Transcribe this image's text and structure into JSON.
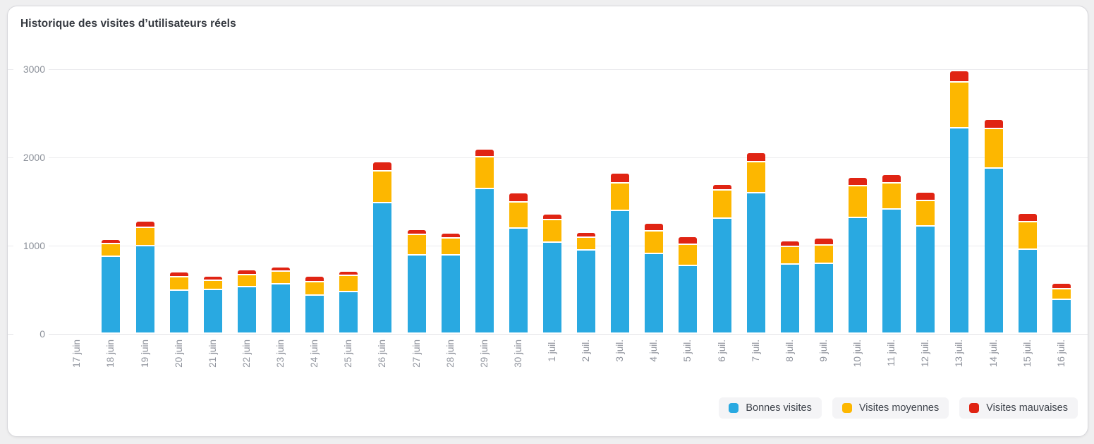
{
  "page": {
    "background": "#efeff0"
  },
  "card": {
    "title": "Historique des visites d’utilisateurs réels"
  },
  "chart_data": {
    "type": "bar",
    "stacked": true,
    "title": "Historique des visites d’utilisateurs réels",
    "xlabel": "",
    "ylabel": "",
    "ylim": [
      0,
      3000
    ],
    "y_ticks": [
      0,
      1000,
      2000,
      3000
    ],
    "grid": true,
    "legend_position": "bottom-right",
    "x_label_rotation": -90,
    "categories": [
      "17 juin",
      "18 juin",
      "19 juin",
      "20 juin",
      "21 juin",
      "22 juin",
      "23 juin",
      "24 juin",
      "25 juin",
      "26 juin",
      "27 juin",
      "28 juin",
      "29 juin",
      "30 juin",
      "1 juil.",
      "2 juil.",
      "3 juil.",
      "4 juil.",
      "5 juil.",
      "6 juil.",
      "7 juil.",
      "8 juil.",
      "9 juil.",
      "10 juil.",
      "11 juil.",
      "12 juil.",
      "13 juil.",
      "14 juil.",
      "15 juil.",
      "16 juil."
    ],
    "series": [
      {
        "name": "Bonnes visites",
        "color": "#29A9E1",
        "values": [
          0,
          860,
          980,
          470,
          480,
          515,
          545,
          415,
          460,
          1465,
          870,
          870,
          1625,
          1180,
          1020,
          925,
          1375,
          890,
          750,
          1285,
          1580,
          770,
          780,
          1300,
          1395,
          1200,
          2310,
          1855,
          935,
          365
        ]
      },
      {
        "name": "Visites moyennes",
        "color": "#FDB700",
        "values": [
          0,
          125,
          190,
          135,
          85,
          115,
          125,
          140,
          165,
          345,
          215,
          180,
          340,
          280,
          235,
          130,
          300,
          240,
          230,
          310,
          330,
          185,
          190,
          340,
          280,
          270,
          505,
          430,
          300,
          105
        ]
      },
      {
        "name": "Visites mauvaises",
        "color": "#E02413",
        "values": [
          0,
          35,
          55,
          40,
          35,
          40,
          35,
          45,
          35,
          85,
          45,
          35,
          75,
          85,
          50,
          45,
          90,
          70,
          65,
          45,
          90,
          45,
          60,
          80,
          75,
          80,
          110,
          90,
          80,
          50
        ]
      }
    ]
  }
}
